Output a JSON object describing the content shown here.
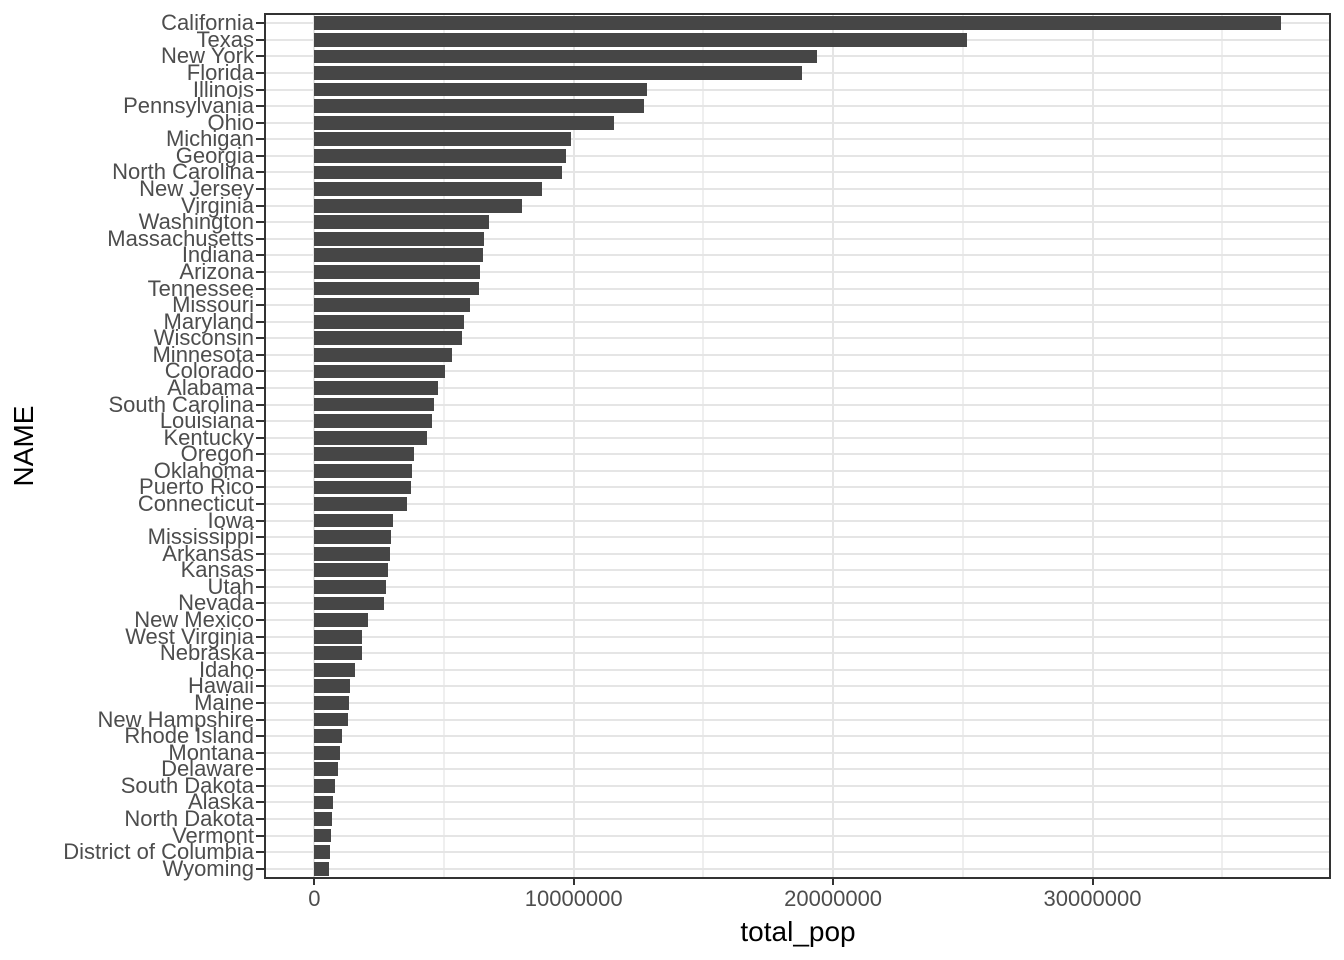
{
  "chart_data": {
    "type": "bar",
    "orientation": "horizontal",
    "title": "",
    "xlabel": "total_pop",
    "ylabel": "NAME",
    "legend": "none",
    "grid": true,
    "bar_color": "#464646",
    "grid_major_color": "#e5e5e5",
    "grid_minor_color": "#efefef",
    "panel_border_color": "#333333",
    "axis_text_color": "#4d4d4d",
    "axis_title_color": "#000000",
    "xlim": [
      0,
      37253956
    ],
    "expand_frac": 0.05,
    "x_ticks": {
      "values": [
        0,
        10000000,
        20000000,
        30000000
      ],
      "labels": [
        "0",
        "10000000",
        "20000000",
        "30000000"
      ]
    },
    "x_minor_ticks": [
      5000000,
      15000000,
      25000000,
      35000000
    ],
    "categories": [
      "California",
      "Texas",
      "New York",
      "Florida",
      "Illinois",
      "Pennsylvania",
      "Ohio",
      "Michigan",
      "Georgia",
      "North Carolina",
      "New Jersey",
      "Virginia",
      "Washington",
      "Massachusetts",
      "Indiana",
      "Arizona",
      "Tennessee",
      "Missouri",
      "Maryland",
      "Wisconsin",
      "Minnesota",
      "Colorado",
      "Alabama",
      "South Carolina",
      "Louisiana",
      "Kentucky",
      "Oregon",
      "Oklahoma",
      "Puerto Rico",
      "Connecticut",
      "Iowa",
      "Mississippi",
      "Arkansas",
      "Kansas",
      "Utah",
      "Nevada",
      "New Mexico",
      "West Virginia",
      "Nebraska",
      "Idaho",
      "Hawaii",
      "Maine",
      "New Hampshire",
      "Rhode Island",
      "Montana",
      "Delaware",
      "South Dakota",
      "Alaska",
      "North Dakota",
      "Vermont",
      "District of Columbia",
      "Wyoming"
    ],
    "values": [
      37253956,
      25145561,
      19378102,
      18801310,
      12830632,
      12702379,
      11536504,
      9883640,
      9687653,
      9535483,
      8791894,
      8001024,
      6724540,
      6547629,
      6483802,
      6392017,
      6346105,
      5988927,
      5773552,
      5686986,
      5303925,
      5029196,
      4779736,
      4625364,
      4533372,
      4339367,
      3831074,
      3751351,
      3725789,
      3574097,
      3046355,
      2967297,
      2915918,
      2853118,
      2763885,
      2700551,
      2059179,
      1852994,
      1826341,
      1567582,
      1360301,
      1328361,
      1316470,
      1052567,
      989415,
      897934,
      814180,
      710231,
      672591,
      625741,
      601723,
      563626
    ]
  }
}
